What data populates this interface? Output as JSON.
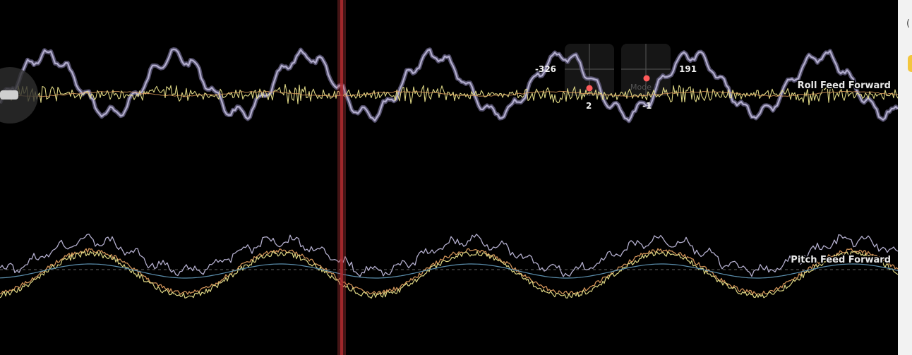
{
  "graphs": [
    {
      "id": "roll",
      "label": "Roll Feed Forward"
    },
    {
      "id": "pitch",
      "label": "Pitch Feed Forward"
    }
  ],
  "stick_overlay": {
    "left_stick": {
      "top_value": "-326",
      "bottom_value": "2"
    },
    "right_stick": {
      "top_value": "191",
      "bottom_value": "-1"
    },
    "mode_label": "Mode 1"
  },
  "colors": {
    "background": "#000000",
    "gyro_trace": "#b3aecd",
    "feedforward_trace": "#e8e08a",
    "setpoint_trace": "#e3a060",
    "average_trace": "#5b8fae",
    "cursor": "#c0383c",
    "stick_dot": "#ff5a5a"
  },
  "icons": {
    "playback_handle": "drag-handle-icon"
  },
  "side_panel": {
    "glyph": "("
  }
}
